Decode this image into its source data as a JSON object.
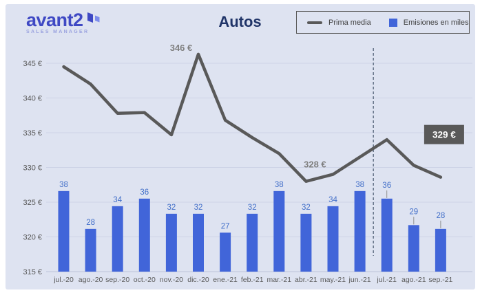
{
  "header": {
    "brand": "avant2",
    "brand_subtitle": "SALES MANAGER",
    "title": "Autos"
  },
  "legend": {
    "items": [
      {
        "label": "Prima media",
        "swatch": "line",
        "color": "#595959"
      },
      {
        "label": "Emisiones en miles",
        "swatch": "square",
        "color": "#4165d9"
      }
    ]
  },
  "chart_data": {
    "type": "combo",
    "title": "Autos",
    "categories": [
      "jul.-20",
      "ago.-20",
      "sep.-20",
      "oct.-20",
      "nov.-20",
      "dic.-20",
      "ene.-21",
      "feb.-21",
      "mar.-21",
      "abr.-21",
      "may.-21",
      "jun.-21",
      "jul.-21",
      "ago.-21",
      "sep.-21"
    ],
    "series": [
      {
        "name": "Prima media",
        "type": "line",
        "unit": "€",
        "color": "#595959",
        "values": [
          344.5,
          342.0,
          337.8,
          337.9,
          334.7,
          346.3,
          336.8,
          334.3,
          332.0,
          328.0,
          329.0,
          331.5,
          334.0,
          330.3,
          328.6
        ]
      },
      {
        "name": "Emisiones en miles",
        "type": "bar",
        "color": "#4165d9",
        "label_color": "#4470c9",
        "values": [
          38,
          28,
          34,
          36,
          32,
          32,
          27,
          32,
          38,
          32,
          34,
          38,
          36,
          29,
          28
        ]
      }
    ],
    "y_axis": {
      "min": 315,
      "max": 345,
      "step": 5,
      "suffix": " €",
      "ticks": [
        "345 €",
        "340 €",
        "335 €",
        "330 €",
        "325 €",
        "320 €",
        "315 €"
      ]
    },
    "secondary_axis": {
      "visible": false
    },
    "grid": true,
    "legend_position": "top-right",
    "annotations": [
      {
        "text": "346 €",
        "category": "dic.-20",
        "placement": "above-left",
        "color": "#7f7f7f"
      },
      {
        "text": "328 €",
        "category": "abr.-21",
        "placement": "above-right",
        "color": "#7f7f7f"
      },
      {
        "text": "329 €",
        "category": "sep.-21",
        "placement": "box-right",
        "color": "#ffffff",
        "bg": "#595959"
      }
    ],
    "divider_after_category": "jun.-21",
    "callout_label_categories": [
      "jul.-21",
      "ago.-21",
      "sep.-21"
    ]
  }
}
